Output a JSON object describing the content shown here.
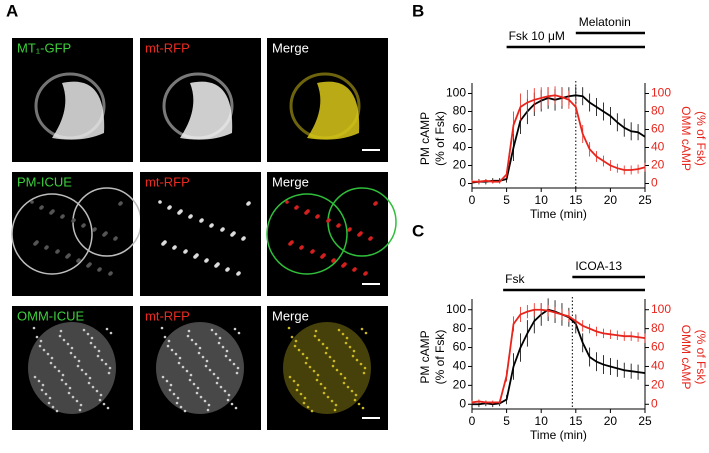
{
  "panel_a": {
    "panel_label": "A",
    "images": [
      {
        "label": "MT₁-GFP",
        "label_color": "#3ccf3c",
        "tint": "#e8e8e8"
      },
      {
        "label": "mt-RFP",
        "label_color": "#ee2a22",
        "tint": "#f2f2f2"
      },
      {
        "label": "Merge",
        "label_color": "#ffffff",
        "tint": "#d9c81a"
      },
      {
        "label": "PM-ICUE",
        "label_color": "#3ccf3c",
        "tint": "#bdbdbd"
      },
      {
        "label": "mt-RFP",
        "label_color": "#ee2a22",
        "tint": "#e6e6e6"
      },
      {
        "label": "Merge",
        "label_color": "#ffffff",
        "tint": "#2fbf3a"
      },
      {
        "label": "OMM-ICUE",
        "label_color": "#3ccf3c",
        "tint": "#c8c8c8"
      },
      {
        "label": "mt-RFP",
        "label_color": "#ee2a22",
        "tint": "#cfcfcf"
      },
      {
        "label": "Merge",
        "label_color": "#ffffff",
        "tint": "#c9b820"
      }
    ]
  },
  "chart_data": [
    {
      "type": "line",
      "panel_label": "B",
      "xlabel": "Time (min)",
      "ylabel": [
        "PM cAMP",
        "(% of Fsk)"
      ],
      "y2label": [
        "OMM cAMP",
        "(% of Fsk)"
      ],
      "y2label_color": "#e8251c",
      "xlim": [
        0,
        25
      ],
      "xticks": [
        0,
        5,
        10,
        15,
        20,
        25
      ],
      "ylim": [
        -5,
        105
      ],
      "yticks": [
        0,
        20,
        40,
        60,
        80,
        100
      ],
      "y2lim": [
        -5,
        105
      ],
      "y2ticks": [
        0,
        20,
        40,
        60,
        80,
        100
      ],
      "vline": 15,
      "treatments": [
        {
          "label": "Fsk 10 μM",
          "start": 5,
          "end": 25
        },
        {
          "label": "Melatonin",
          "start": 15,
          "end": 25
        }
      ],
      "x": [
        0,
        1,
        2,
        3,
        4,
        5,
        6,
        7,
        8,
        9,
        10,
        11,
        12,
        13,
        14,
        15,
        16,
        17,
        18,
        19,
        20,
        21,
        22,
        23,
        24,
        25
      ],
      "series": [
        {
          "color": "#000000",
          "axis": "y",
          "values": [
            1,
            2,
            2,
            3,
            3,
            5,
            40,
            70,
            80,
            88,
            92,
            95,
            93,
            95,
            97,
            98,
            97,
            90,
            85,
            80,
            75,
            68,
            62,
            58,
            57,
            52
          ],
          "errors": [
            3,
            3,
            3,
            3,
            3,
            4,
            15,
            15,
            14,
            13,
            12,
            12,
            12,
            12,
            10,
            10,
            10,
            10,
            10,
            10,
            10,
            10,
            10,
            10,
            9,
            8
          ]
        },
        {
          "color": "#e8251c",
          "axis": "y2",
          "values": [
            2,
            2,
            3,
            2,
            2,
            10,
            65,
            85,
            90,
            93,
            95,
            97,
            98,
            96,
            93,
            85,
            55,
            38,
            30,
            25,
            20,
            17,
            15,
            15,
            16,
            18
          ],
          "errors": [
            2,
            2,
            2,
            2,
            2,
            4,
            15,
            15,
            14,
            13,
            12,
            10,
            10,
            10,
            10,
            10,
            10,
            8,
            6,
            6,
            6,
            5,
            5,
            5,
            5,
            5
          ]
        }
      ]
    },
    {
      "type": "line",
      "panel_label": "C",
      "xlabel": "Time (min)",
      "ylabel": [
        "PM cAMP",
        "(% of Fsk)"
      ],
      "y2label": [
        "OMM cAMP",
        "(% of Fsk)"
      ],
      "y2label_color": "#e8251c",
      "xlim": [
        0,
        25
      ],
      "xticks": [
        0,
        5,
        10,
        15,
        20,
        25
      ],
      "ylim": [
        -5,
        105
      ],
      "yticks": [
        0,
        20,
        40,
        60,
        80,
        100
      ],
      "y2lim": [
        -5,
        105
      ],
      "y2ticks": [
        0,
        20,
        40,
        60,
        80,
        100
      ],
      "vline": 14.5,
      "treatments": [
        {
          "label": "Fsk",
          "start": 4.5,
          "end": 25
        },
        {
          "label": "ICOA-13",
          "start": 14.5,
          "end": 25
        }
      ],
      "x": [
        0,
        1,
        2,
        3,
        4,
        5,
        6,
        7,
        8,
        9,
        10,
        11,
        12,
        13,
        14,
        15,
        16,
        17,
        18,
        19,
        20,
        21,
        22,
        23,
        24,
        25
      ],
      "series": [
        {
          "color": "#000000",
          "axis": "y",
          "values": [
            0,
            0,
            1,
            0,
            1,
            5,
            40,
            60,
            75,
            88,
            95,
            100,
            98,
            95,
            92,
            85,
            65,
            50,
            45,
            42,
            40,
            38,
            36,
            35,
            34,
            33
          ],
          "errors": [
            3,
            3,
            3,
            3,
            3,
            5,
            14,
            15,
            14,
            13,
            12,
            12,
            12,
            12,
            10,
            10,
            10,
            10,
            10,
            10,
            9,
            9,
            8,
            8,
            8,
            7
          ]
        },
        {
          "color": "#e8251c",
          "axis": "y2",
          "values": [
            2,
            3,
            2,
            2,
            2,
            30,
            85,
            95,
            98,
            100,
            100,
            99,
            97,
            95,
            93,
            88,
            83,
            80,
            77,
            75,
            74,
            73,
            72,
            72,
            71,
            70
          ],
          "errors": [
            2,
            2,
            2,
            2,
            2,
            6,
            8,
            8,
            7,
            7,
            7,
            6,
            6,
            6,
            6,
            6,
            6,
            5,
            5,
            5,
            5,
            5,
            5,
            5,
            5,
            5
          ]
        }
      ]
    }
  ]
}
